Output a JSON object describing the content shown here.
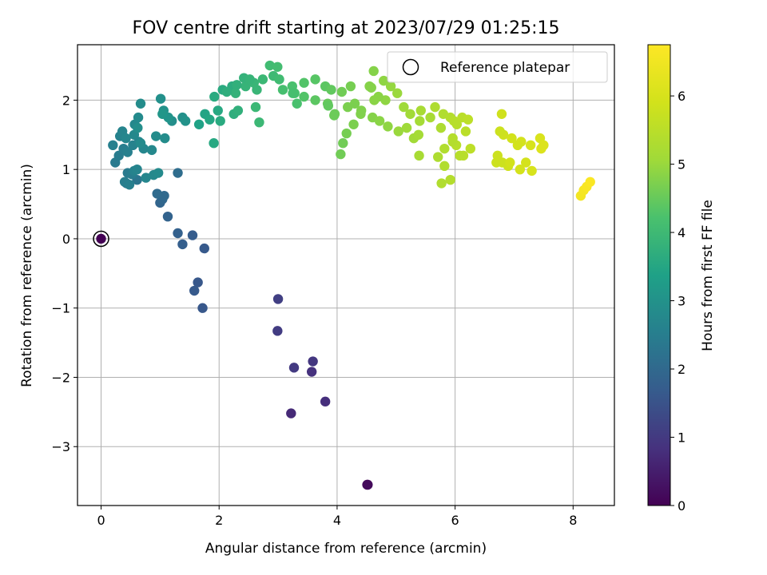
{
  "chart_data": {
    "type": "scatter",
    "title": "FOV centre drift starting at 2023/07/29 01:25:15",
    "xlabel": "Angular distance from reference (arcmin)",
    "ylabel": "Rotation from reference (arcmin)",
    "xlim": [
      -0.4,
      8.7
    ],
    "ylim": [
      -3.85,
      2.8
    ],
    "x_ticks": [
      0,
      2,
      4,
      6,
      8
    ],
    "x_tick_labels": [
      "0",
      "2",
      "4",
      "6",
      "8"
    ],
    "y_ticks": [
      -3,
      -2,
      -1,
      0,
      1,
      2
    ],
    "y_tick_labels": [
      "−3",
      "−2",
      "−1",
      "0",
      "1",
      "2"
    ],
    "grid": true,
    "colormap": "viridis",
    "colorbar": {
      "label": "Hours from first FF file",
      "range": [
        0,
        6.75
      ],
      "ticks": [
        0,
        1,
        2,
        3,
        4,
        5,
        6
      ],
      "tick_labels": [
        "0",
        "1",
        "2",
        "3",
        "4",
        "5",
        "6"
      ]
    },
    "legend": {
      "position": "top-right",
      "entries": [
        {
          "label": "Reference platepar",
          "marker": "open-circle"
        }
      ]
    },
    "reference_point": {
      "x": 0,
      "y": 0
    },
    "series": [
      {
        "x": [
          0.0,
          4.51,
          4.52,
          3.22,
          3.8,
          3.57,
          3.59,
          3.27,
          2.99,
          3.0,
          1.72,
          1.64,
          1.58,
          1.75,
          1.55,
          1.38,
          1.3,
          1.13,
          1.0,
          1.04,
          1.07,
          0.95,
          1.3,
          0.61,
          0.43,
          0.45,
          0.52,
          0.4,
          0.48,
          0.56,
          0.61,
          0.76,
          0.89,
          0.97,
          0.24,
          0.3,
          0.38,
          0.45,
          0.54,
          0.64,
          0.72,
          0.86,
          1.08,
          0.2,
          0.32,
          0.36,
          0.42,
          0.56,
          0.67,
          0.93,
          1.2,
          1.38,
          1.43,
          0.57,
          0.63,
          0.67,
          0.62,
          1.01,
          1.06,
          1.14,
          1.04,
          1.66,
          1.76,
          1.84,
          1.91,
          1.98,
          1.92,
          2.06,
          2.22,
          2.02,
          2.25,
          2.32,
          2.28,
          2.45,
          2.59,
          2.74,
          2.92,
          3.02,
          2.86,
          2.99,
          3.08,
          3.24,
          3.44,
          3.63,
          3.8,
          3.9,
          2.13,
          2.3,
          2.42,
          2.52,
          2.64,
          2.68,
          3.28,
          3.44,
          3.63,
          3.84,
          3.96,
          2.62,
          4.06,
          4.16,
          4.28,
          4.4,
          4.18,
          4.6,
          4.72,
          4.86,
          5.04,
          5.18,
          5.3,
          5.38,
          4.1,
          4.55,
          4.82,
          5.02,
          5.24,
          5.4,
          5.58,
          5.76,
          4.62,
          4.58,
          4.7,
          4.79,
          4.91,
          5.42,
          5.66,
          5.8,
          5.92,
          6.03,
          6.18,
          5.96,
          6.02,
          6.14,
          6.26,
          5.98,
          6.12,
          6.22,
          5.82,
          5.96,
          6.08,
          6.7,
          6.82,
          6.96,
          7.12,
          7.28,
          7.44,
          7.46,
          7.5,
          6.72,
          6.9,
          7.1,
          7.3,
          7.2,
          7.06,
          6.8,
          6.76,
          8.13,
          8.18,
          8.23,
          8.29,
          3.95,
          4.3,
          4.41,
          4.63,
          5.13,
          5.71,
          5.39,
          5.82,
          5.92,
          6.79,
          6.93,
          5.77,
          3.85,
          3.32,
          3.25,
          4.08,
          4.23
        ],
        "y": [
          0.0,
          -3.55,
          -3.55,
          -2.52,
          -2.35,
          -1.92,
          -1.77,
          -1.86,
          -1.33,
          -0.87,
          -1.0,
          -0.63,
          -0.75,
          -0.14,
          0.05,
          -0.08,
          0.08,
          0.32,
          0.52,
          0.57,
          0.62,
          0.65,
          0.95,
          0.85,
          0.8,
          0.95,
          0.93,
          0.82,
          0.78,
          0.98,
          1.0,
          0.88,
          0.92,
          0.95,
          1.1,
          1.2,
          1.3,
          1.25,
          1.35,
          1.4,
          1.3,
          1.28,
          1.45,
          1.35,
          1.48,
          1.55,
          1.45,
          1.5,
          1.38,
          1.48,
          1.7,
          1.75,
          1.7,
          1.65,
          1.75,
          1.95,
          1.6,
          2.02,
          1.85,
          1.75,
          1.8,
          1.65,
          1.8,
          1.72,
          1.38,
          1.85,
          2.05,
          2.15,
          2.2,
          1.7,
          1.8,
          1.85,
          2.1,
          2.2,
          2.25,
          2.3,
          2.35,
          2.3,
          2.5,
          2.48,
          2.15,
          2.2,
          2.25,
          2.3,
          2.2,
          2.15,
          2.12,
          2.22,
          2.32,
          2.3,
          2.15,
          1.68,
          2.1,
          2.05,
          2.0,
          1.95,
          1.8,
          1.9,
          1.22,
          1.52,
          1.65,
          1.8,
          1.9,
          1.75,
          1.7,
          1.62,
          1.55,
          1.6,
          1.45,
          1.5,
          1.38,
          2.2,
          2.0,
          2.1,
          1.8,
          1.7,
          1.75,
          1.6,
          2.42,
          2.18,
          2.05,
          2.28,
          2.2,
          1.85,
          1.9,
          1.8,
          1.75,
          1.65,
          1.55,
          1.45,
          1.35,
          1.2,
          1.3,
          1.7,
          1.75,
          1.72,
          1.3,
          1.4,
          1.2,
          1.1,
          1.5,
          1.45,
          1.4,
          1.35,
          1.45,
          1.3,
          1.35,
          1.2,
          1.05,
          1.0,
          0.98,
          1.1,
          1.35,
          1.1,
          1.55,
          0.62,
          0.7,
          0.75,
          0.82,
          1.78,
          1.95,
          1.85,
          2.0,
          1.9,
          1.18,
          1.2,
          1.05,
          0.85,
          1.8,
          1.1,
          0.8,
          1.92,
          1.95,
          2.1,
          2.12,
          2.2
        ],
        "hours": [
          0.0,
          0.1,
          0.15,
          0.7,
          0.8,
          0.85,
          0.95,
          1.0,
          1.05,
          1.1,
          1.6,
          1.6,
          1.65,
          1.65,
          1.7,
          1.75,
          1.8,
          1.85,
          1.9,
          1.95,
          2.0,
          2.05,
          2.1,
          2.3,
          2.35,
          2.4,
          2.45,
          2.5,
          2.55,
          2.6,
          2.65,
          2.7,
          2.75,
          2.8,
          2.4,
          2.45,
          2.5,
          2.55,
          2.6,
          2.65,
          2.7,
          2.75,
          2.85,
          2.55,
          2.6,
          2.65,
          2.7,
          2.75,
          2.8,
          2.85,
          2.9,
          2.95,
          3.0,
          2.75,
          2.8,
          2.85,
          2.9,
          2.95,
          3.0,
          3.05,
          3.1,
          3.4,
          3.45,
          3.5,
          3.55,
          3.55,
          3.6,
          3.6,
          3.65,
          3.6,
          3.7,
          3.75,
          3.8,
          3.85,
          3.9,
          3.95,
          4.0,
          4.05,
          4.05,
          4.1,
          4.15,
          4.2,
          4.3,
          4.35,
          4.4,
          4.45,
          3.7,
          3.75,
          3.8,
          3.85,
          3.9,
          3.95,
          4.2,
          4.3,
          4.4,
          4.5,
          4.55,
          3.95,
          4.6,
          4.65,
          4.7,
          4.75,
          4.7,
          4.8,
          4.85,
          4.9,
          5.0,
          5.05,
          5.1,
          5.15,
          4.6,
          4.8,
          4.9,
          5.0,
          5.1,
          5.15,
          5.2,
          5.3,
          4.8,
          4.8,
          4.85,
          4.9,
          4.95,
          5.2,
          5.3,
          5.35,
          5.4,
          5.45,
          5.5,
          5.4,
          5.45,
          5.5,
          5.55,
          5.45,
          5.5,
          5.55,
          5.35,
          5.4,
          5.45,
          5.8,
          5.85,
          5.9,
          5.95,
          6.0,
          6.05,
          6.1,
          6.1,
          5.8,
          5.85,
          5.95,
          6.0,
          5.95,
          5.9,
          5.8,
          5.8,
          6.55,
          6.6,
          6.65,
          6.7,
          4.55,
          4.7,
          4.75,
          4.85,
          5.05,
          5.3,
          5.2,
          5.35,
          5.4,
          5.85,
          5.9,
          5.35,
          4.45,
          4.2,
          4.15,
          4.6,
          4.65
        ]
      }
    ]
  }
}
